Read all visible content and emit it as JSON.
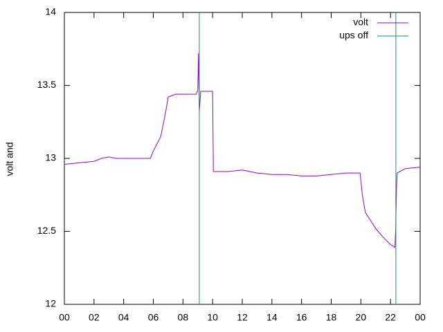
{
  "chart_data": {
    "type": "line",
    "ylabel": "volt and",
    "xlim": [
      0,
      24
    ],
    "xticks": [
      {
        "value": 0,
        "label": "00"
      },
      {
        "value": 2,
        "label": "02"
      },
      {
        "value": 4,
        "label": "04"
      },
      {
        "value": 6,
        "label": "06"
      },
      {
        "value": 8,
        "label": "08"
      },
      {
        "value": 10,
        "label": "10"
      },
      12,
      14,
      16,
      18,
      20,
      22,
      {
        "value": 24,
        "label": "00"
      }
    ],
    "ylim": [
      12,
      14
    ],
    "yticks": [
      12,
      12.5,
      13,
      13.5,
      14
    ],
    "legend": "top-right",
    "series": [
      {
        "name": "volt",
        "color": "#9400d3",
        "x": [
          0,
          1,
          2,
          2.5,
          3,
          3.5,
          4,
          5,
          5.8,
          6,
          6.5,
          6.8,
          7,
          7.5,
          8,
          8.9,
          9.0,
          9.05,
          9.1,
          9.2,
          9.5,
          10.0,
          10.05,
          11,
          12,
          13,
          14,
          15,
          16,
          17,
          18,
          19,
          19.95,
          20.1,
          20.3,
          21,
          21.5,
          22,
          22.3,
          22.35,
          22.4,
          22.45,
          23,
          24
        ],
        "values": [
          12.96,
          12.97,
          12.98,
          13.0,
          13.01,
          13.0,
          13.0,
          13.0,
          13.0,
          13.05,
          13.15,
          13.3,
          13.42,
          13.44,
          13.44,
          13.44,
          13.47,
          13.72,
          13.32,
          13.46,
          13.46,
          13.46,
          12.91,
          12.91,
          12.92,
          12.9,
          12.89,
          12.89,
          12.88,
          12.88,
          12.89,
          12.9,
          12.9,
          12.75,
          12.63,
          12.52,
          12.46,
          12.41,
          12.39,
          12.52,
          12.78,
          12.9,
          12.93,
          12.94
        ]
      },
      {
        "name": "ups off",
        "color": "#009e73",
        "x": [
          9.1,
          9.1,
          null,
          22.36,
          22.36
        ],
        "values": [
          12,
          14,
          null,
          12,
          14
        ]
      }
    ]
  }
}
